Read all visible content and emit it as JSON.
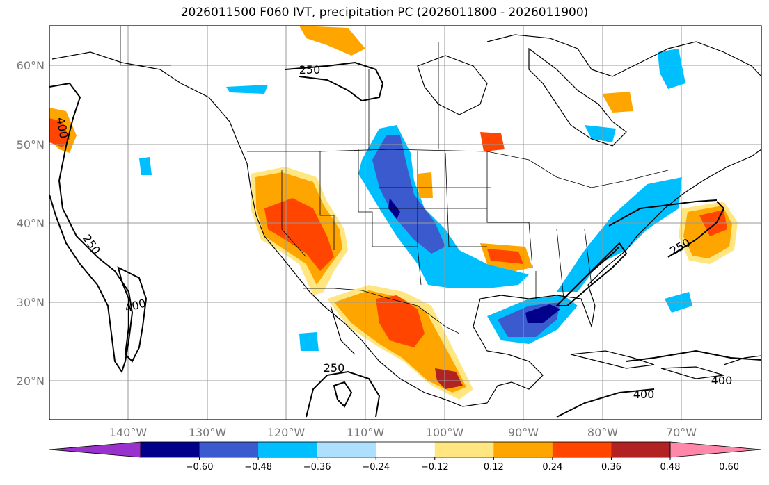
{
  "title": "2026011500 F060 IVT, precipitation PC (2026011800 - 2026011900)",
  "map": {
    "lat_labels": [
      "60°N",
      "50°N",
      "40°N",
      "30°N",
      "20°N"
    ],
    "lat_values": [
      60,
      50,
      40,
      30,
      20
    ],
    "lon_labels": [
      "140°W",
      "130°W",
      "120°W",
      "110°W",
      "100°W",
      "90°W",
      "80°W",
      "70°W"
    ],
    "lon_values": [
      -140,
      -130,
      -120,
      -110,
      -100,
      -90,
      -80,
      -70
    ],
    "lon_range": [
      -150,
      -60
    ],
    "lat_range": [
      15,
      65
    ],
    "grid": true,
    "ivt_contour_labels": [
      "250",
      "400",
      "250",
      "400",
      "250",
      "250",
      "400",
      "400"
    ]
  },
  "colorbar": {
    "tick_labels": [
      "−0.60",
      "−0.48",
      "−0.36",
      "−0.24",
      "−0.12",
      "0.12",
      "0.24",
      "0.36",
      "0.48",
      "0.60"
    ],
    "colors": [
      "#9932CC",
      "#00008B",
      "#3A5ACD",
      "#00BFFF",
      "#ADDFFF",
      "#FFFFFF",
      "#FFE680",
      "#FFA500",
      "#FF4500",
      "#B22222",
      "#FF88AA"
    ]
  }
}
